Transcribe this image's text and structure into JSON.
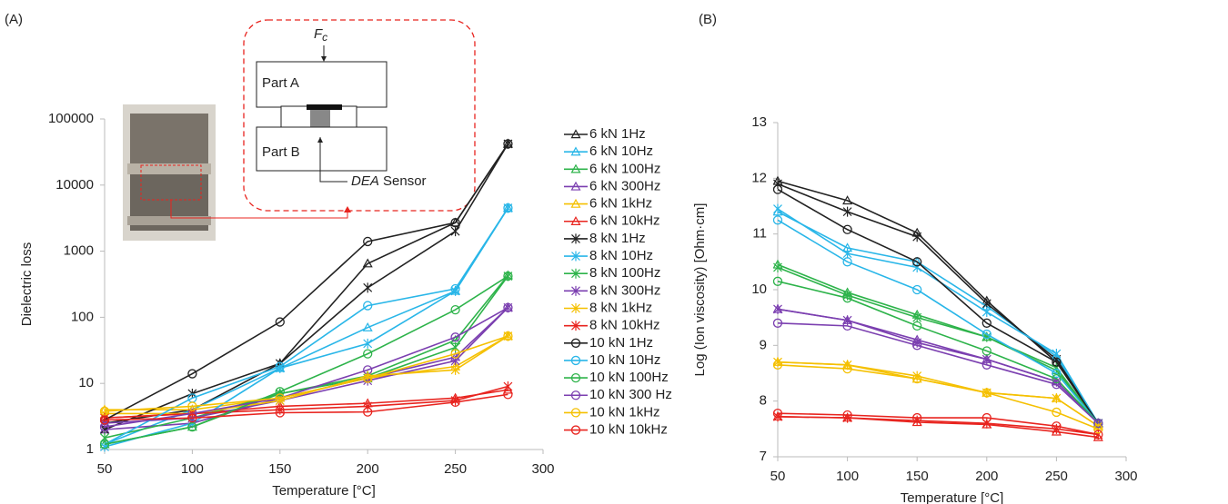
{
  "chart_data": [
    {
      "type": "line",
      "panel_label": "(A)",
      "x_label": "Temperature [°C]",
      "y_label": "Dielectric loss",
      "log_y": true,
      "grid": false,
      "legend": "right",
      "xlim": [
        50,
        300
      ],
      "xticks": [
        50,
        100,
        150,
        200,
        250,
        300
      ],
      "ylim": [
        1,
        100000
      ],
      "yticks": [
        1,
        10,
        100,
        1000,
        10000,
        100000
      ],
      "inset": {
        "force": "F",
        "force_subscript": "c",
        "part_a": "Part A",
        "part_b": "Part B",
        "sensor_name": "DEA",
        "sensor_word": "Sensor"
      },
      "x": [
        50,
        100,
        150,
        200,
        250,
        280
      ],
      "series": [
        {
          "name": "6 kN 1Hz",
          "color": "#222222",
          "marker": "triangle",
          "values": [
            2.5,
            4,
            20,
            650,
            2700,
            42000
          ]
        },
        {
          "name": "6 kN 10Hz",
          "color": "#29b6e8",
          "marker": "triangle",
          "values": [
            1.2,
            4,
            17,
            70,
            250,
            4500
          ]
        },
        {
          "name": "6 kN 100Hz",
          "color": "#2db34a",
          "marker": "triangle",
          "values": [
            1.2,
            2.2,
            7,
            13,
            45,
            430
          ]
        },
        {
          "name": "6 kN 300Hz",
          "color": "#7b3fb0",
          "marker": "triangle",
          "values": [
            2,
            2.5,
            6,
            12,
            25,
            140
          ]
        },
        {
          "name": "6 kN 1kHz",
          "color": "#f5c000",
          "marker": "triangle",
          "values": [
            4,
            4,
            6,
            12,
            18,
            52
          ]
        },
        {
          "name": "6 kN 10kHz",
          "color": "#e8241f",
          "marker": "triangle",
          "values": [
            3,
            3.5,
            4.5,
            5,
            6,
            8
          ]
        },
        {
          "name": "8 kN 1Hz",
          "color": "#222222",
          "marker": "star",
          "values": [
            2,
            7,
            20,
            280,
            2000,
            42000
          ]
        },
        {
          "name": "8 kN 10Hz",
          "color": "#29b6e8",
          "marker": "star",
          "values": [
            1.1,
            2.5,
            17,
            40,
            250,
            4500
          ]
        },
        {
          "name": "8 kN 100Hz",
          "color": "#2db34a",
          "marker": "star",
          "values": [
            1.5,
            3,
            7,
            12,
            35,
            420
          ]
        },
        {
          "name": "8 kN 300Hz",
          "color": "#7b3fb0",
          "marker": "star",
          "values": [
            2.5,
            3,
            5.5,
            11,
            22,
            140
          ]
        },
        {
          "name": "8 kN 1kHz",
          "color": "#f5c000",
          "marker": "star",
          "values": [
            3.5,
            3.5,
            5.5,
            13,
            16,
            52
          ]
        },
        {
          "name": "8 kN 10kHz",
          "color": "#e8241f",
          "marker": "star",
          "values": [
            3,
            3.5,
            4,
            4.5,
            5.5,
            9
          ]
        },
        {
          "name": "10 kN 1Hz",
          "color": "#222222",
          "marker": "circle",
          "values": [
            2.8,
            14,
            85,
            1400,
            2700,
            42000
          ]
        },
        {
          "name": "10 kN 10Hz",
          "color": "#29b6e8",
          "marker": "circle",
          "values": [
            1.2,
            6,
            18,
            150,
            270,
            4500
          ]
        },
        {
          "name": "10 kN 100Hz",
          "color": "#2db34a",
          "marker": "circle",
          "values": [
            1.2,
            2.2,
            7.5,
            28,
            130,
            420
          ]
        },
        {
          "name": "10 kN 300 Hz",
          "color": "#7b3fb0",
          "marker": "circle",
          "values": [
            2.2,
            3.5,
            6,
            16,
            50,
            140
          ]
        },
        {
          "name": "10 kN 1kHz",
          "color": "#f5c000",
          "marker": "circle",
          "values": [
            3.8,
            4.5,
            6,
            12,
            28,
            52
          ]
        },
        {
          "name": "10 kN 10kHz",
          "color": "#e8241f",
          "marker": "circle",
          "values": [
            2.8,
            3,
            3.6,
            3.7,
            5.2,
            6.8
          ]
        }
      ]
    },
    {
      "type": "line",
      "panel_label": "(B)",
      "x_label": "Temperature [°C]",
      "y_label": "Log (Ion viscosity) [Ohm·cm]",
      "log_y": false,
      "grid": false,
      "xlim": [
        50,
        300
      ],
      "xticks": [
        50,
        100,
        150,
        200,
        250,
        300
      ],
      "ylim": [
        7,
        13
      ],
      "yticks": [
        7,
        8,
        9,
        10,
        11,
        12,
        13
      ],
      "x": [
        50,
        100,
        150,
        200,
        250,
        280
      ],
      "series": [
        {
          "color": "#222222",
          "marker": "triangle",
          "values": [
            11.95,
            11.6,
            11.02,
            9.8,
            8.7,
            7.6
          ]
        },
        {
          "color": "#29b6e8",
          "marker": "triangle",
          "values": [
            11.4,
            10.75,
            10.5,
            9.7,
            8.8,
            7.6
          ]
        },
        {
          "color": "#2db34a",
          "marker": "triangle",
          "values": [
            10.45,
            9.95,
            9.55,
            9.15,
            8.55,
            7.6
          ]
        },
        {
          "color": "#7b3fb0",
          "marker": "triangle",
          "values": [
            9.65,
            9.45,
            9.1,
            8.75,
            8.35,
            7.6
          ]
        },
        {
          "color": "#f5c000",
          "marker": "triangle",
          "values": [
            8.7,
            8.65,
            8.4,
            8.15,
            8.05,
            7.55
          ]
        },
        {
          "color": "#e8241f",
          "marker": "triangle",
          "values": [
            7.72,
            7.7,
            7.62,
            7.58,
            7.45,
            7.35
          ]
        },
        {
          "color": "#222222",
          "marker": "star",
          "values": [
            11.9,
            11.4,
            10.95,
            9.75,
            8.75,
            7.6
          ]
        },
        {
          "color": "#29b6e8",
          "marker": "star",
          "values": [
            11.45,
            10.65,
            10.4,
            9.6,
            8.85,
            7.6
          ]
        },
        {
          "color": "#2db34a",
          "marker": "star",
          "values": [
            10.4,
            9.9,
            9.5,
            9.15,
            8.6,
            7.6
          ]
        },
        {
          "color": "#7b3fb0",
          "marker": "star",
          "values": [
            9.65,
            9.45,
            9.05,
            8.75,
            8.35,
            7.6
          ]
        },
        {
          "color": "#f5c000",
          "marker": "star",
          "values": [
            8.7,
            8.65,
            8.45,
            8.15,
            8.05,
            7.55
          ]
        },
        {
          "color": "#e8241f",
          "marker": "star",
          "values": [
            7.72,
            7.7,
            7.65,
            7.6,
            7.5,
            7.4
          ]
        },
        {
          "color": "#222222",
          "marker": "circle",
          "values": [
            11.8,
            11.08,
            10.5,
            9.4,
            8.7,
            7.6
          ]
        },
        {
          "color": "#29b6e8",
          "marker": "circle",
          "values": [
            11.25,
            10.5,
            10.0,
            9.2,
            8.5,
            7.6
          ]
        },
        {
          "color": "#2db34a",
          "marker": "circle",
          "values": [
            10.15,
            9.85,
            9.35,
            8.9,
            8.4,
            7.6
          ]
        },
        {
          "color": "#7b3fb0",
          "marker": "circle",
          "values": [
            9.4,
            9.35,
            9.0,
            8.65,
            8.3,
            7.6
          ]
        },
        {
          "color": "#f5c000",
          "marker": "circle",
          "values": [
            8.65,
            8.58,
            8.4,
            8.15,
            7.8,
            7.5
          ]
        },
        {
          "color": "#e8241f",
          "marker": "circle",
          "values": [
            7.78,
            7.75,
            7.7,
            7.7,
            7.55,
            7.4
          ]
        }
      ]
    }
  ]
}
